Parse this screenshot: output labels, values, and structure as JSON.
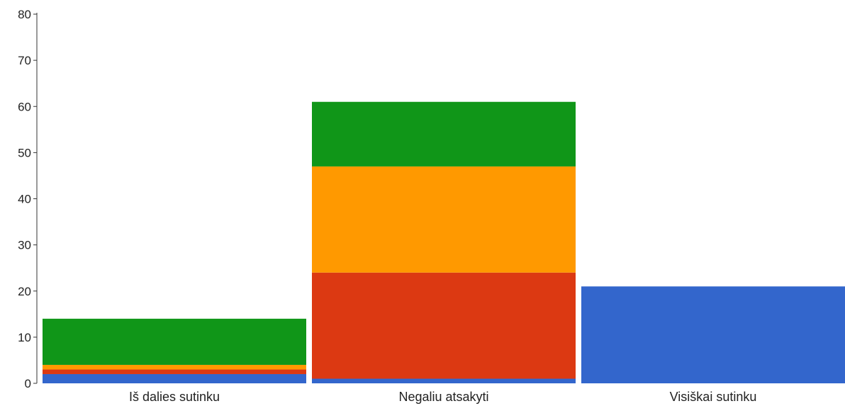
{
  "chart_data": {
    "type": "bar",
    "stacked": true,
    "categories": [
      "Iš dalies sutinku",
      "Negaliu atsakyti",
      "Visiškai sutinku"
    ],
    "series": [
      {
        "color": "#3366cc",
        "values": [
          2,
          1,
          21
        ]
      },
      {
        "color": "#dc3912",
        "values": [
          1,
          23,
          0
        ]
      },
      {
        "color": "#ff9900",
        "values": [
          1,
          23,
          0
        ]
      },
      {
        "color": "#109618",
        "values": [
          10,
          14,
          0
        ]
      }
    ],
    "ylim": [
      0,
      80
    ],
    "yticks": [
      "0",
      "10",
      "20",
      "30",
      "40",
      "50",
      "60",
      "70",
      "80"
    ],
    "grid": false,
    "legend": "none"
  }
}
